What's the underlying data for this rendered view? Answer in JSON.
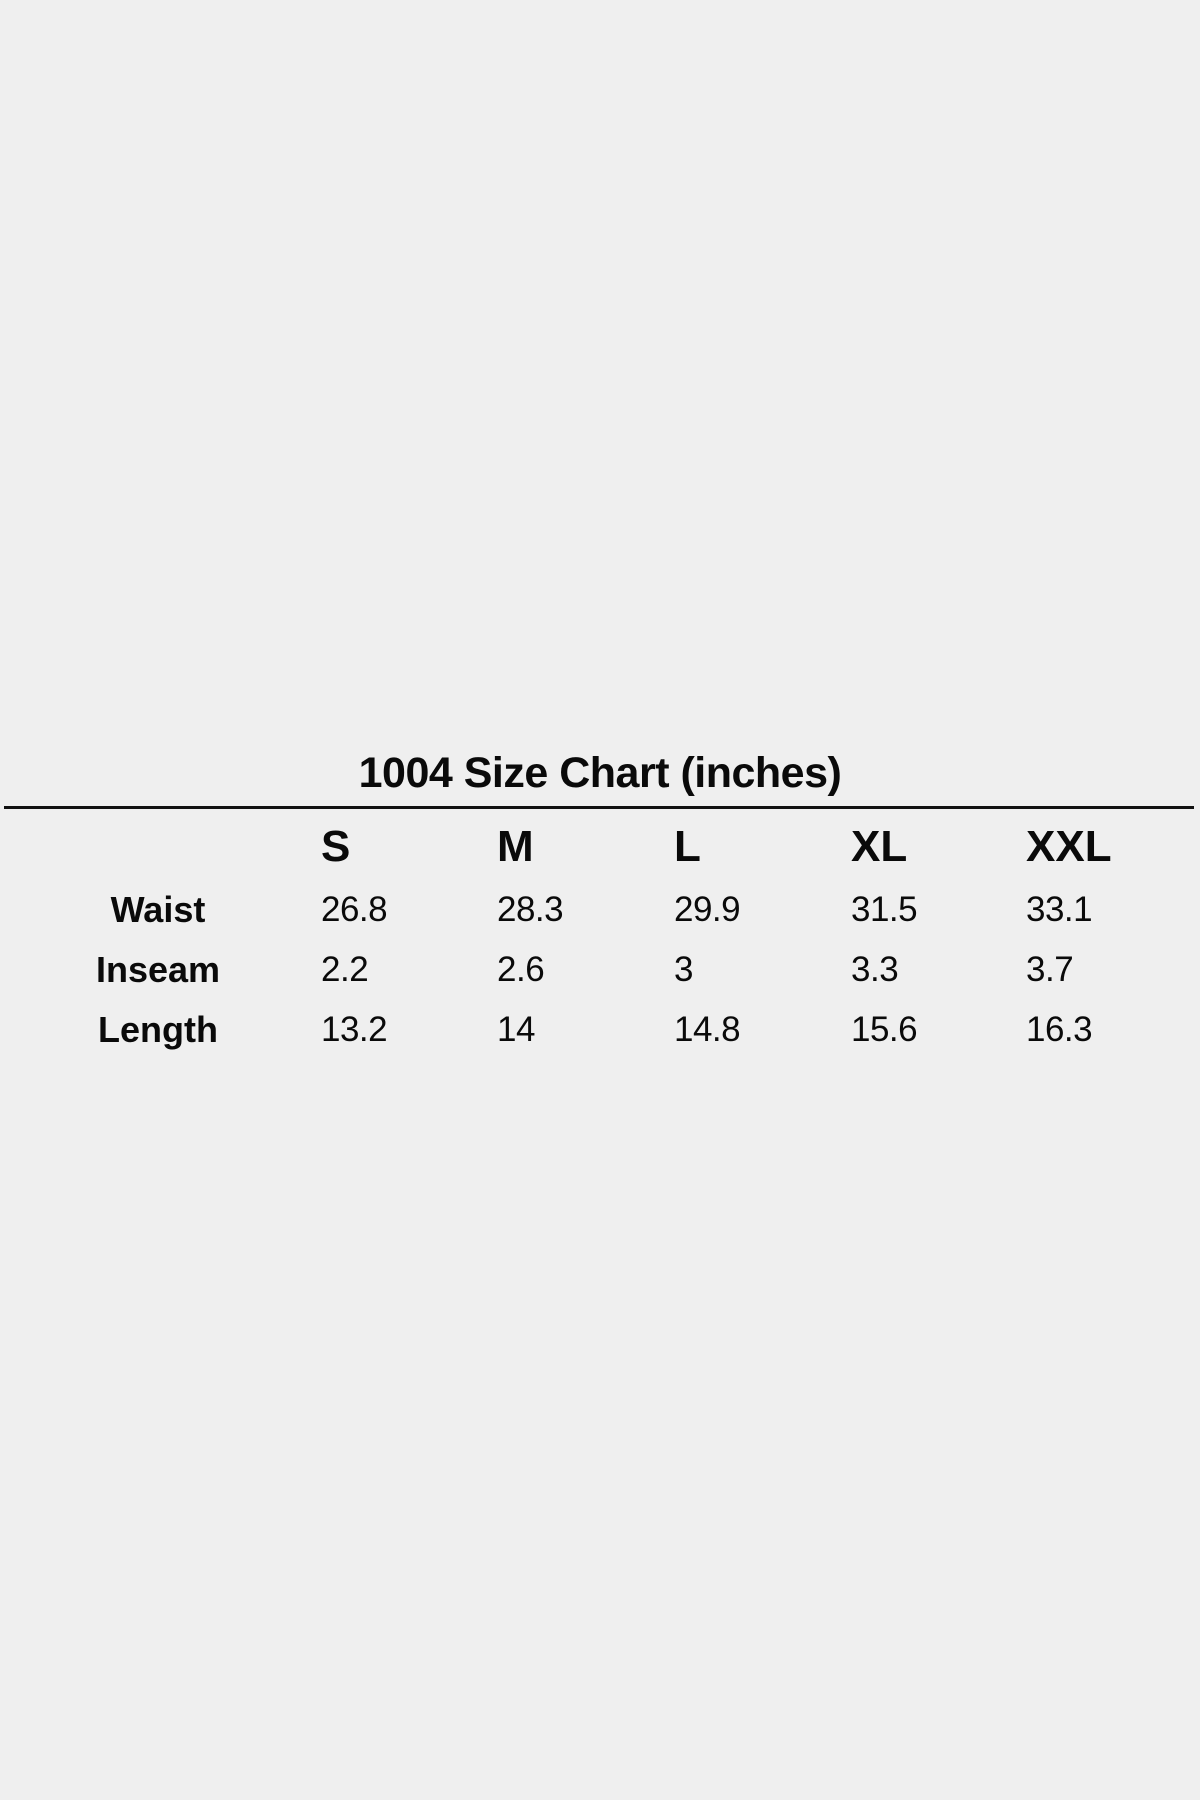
{
  "title": "1004 Size Chart (inches)",
  "table": {
    "columns": [
      "S",
      "M",
      "L",
      "XL",
      "XXL"
    ],
    "rows": [
      {
        "label": "Waist",
        "values": [
          "26.8",
          "28.3",
          "29.9",
          "31.5",
          "33.1"
        ]
      },
      {
        "label": "Inseam",
        "values": [
          "2.2",
          "2.6",
          "3",
          "3.3",
          "3.7"
        ]
      },
      {
        "label": "Length",
        "values": [
          "13.2",
          "14",
          "14.8",
          "15.6",
          "16.3"
        ]
      }
    ]
  },
  "colors": {
    "background": "#efefef",
    "text": "#0a0a0a"
  }
}
